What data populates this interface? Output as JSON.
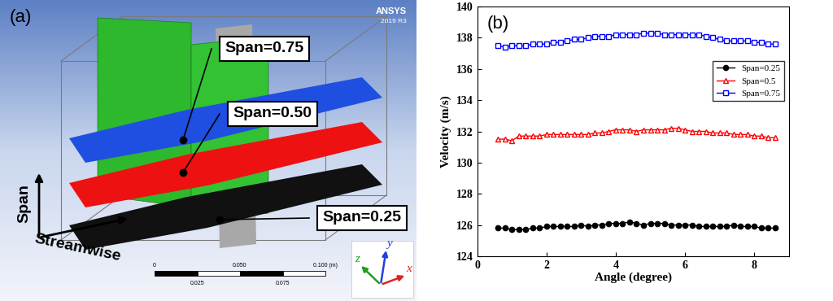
{
  "diagram": {
    "panel_label": "(a)",
    "logo": {
      "title": "ANSYS",
      "version": "2019 R3"
    },
    "surface_labels": [
      "Span=0.75",
      "Span=0.50",
      "Span=0.25"
    ],
    "axes_arrows": {
      "vertical": "Span",
      "horizontal": "Streamwise"
    },
    "scale_bar": {
      "labels_top": [
        "0",
        "0.050",
        "0.100 (m)"
      ],
      "labels_bottom": [
        "0.025",
        "0.075"
      ]
    },
    "triad": [
      "z",
      "y",
      "x"
    ]
  },
  "chart_data": {
    "type": "line",
    "annotations": [
      "(b)"
    ],
    "x_label": "Angle (degree)",
    "y_label": "Velocity (m/s)",
    "x": [
      0.6,
      0.8,
      1.0,
      1.2,
      1.4,
      1.6,
      1.8,
      2.0,
      2.2,
      2.4,
      2.6,
      2.8,
      3.0,
      3.2,
      3.4,
      3.6,
      3.8,
      4.0,
      4.2,
      4.4,
      4.6,
      4.8,
      5.0,
      5.2,
      5.4,
      5.6,
      5.8,
      6.0,
      6.2,
      6.4,
      6.6,
      6.8,
      7.0,
      7.2,
      7.4,
      7.6,
      7.8,
      8.0,
      8.2,
      8.4,
      8.6
    ],
    "series": [
      {
        "name": "Span=0.25",
        "color": "#000000",
        "marker": "circle",
        "values": [
          125.8,
          125.8,
          125.7,
          125.7,
          125.7,
          125.8,
          125.8,
          125.9,
          125.9,
          125.9,
          125.9,
          125.9,
          126.0,
          125.9,
          126.0,
          126.0,
          126.1,
          126.1,
          126.1,
          126.2,
          126.1,
          126.0,
          126.1,
          126.1,
          126.1,
          126.0,
          126.0,
          126.0,
          126.0,
          125.9,
          125.9,
          125.9,
          125.9,
          125.9,
          126.0,
          125.9,
          125.9,
          125.9,
          125.8,
          125.8,
          125.8
        ]
      },
      {
        "name": "Span=0.5",
        "color": "#ff0000",
        "marker": "triangle",
        "values": [
          131.5,
          131.5,
          131.4,
          131.7,
          131.7,
          131.7,
          131.7,
          131.8,
          131.8,
          131.8,
          131.8,
          131.8,
          131.8,
          131.8,
          131.9,
          131.9,
          132.0,
          132.1,
          132.1,
          132.1,
          132.0,
          132.1,
          132.1,
          132.1,
          132.1,
          132.2,
          132.2,
          132.1,
          132.0,
          132.0,
          132.0,
          131.9,
          131.9,
          131.9,
          131.8,
          131.8,
          131.8,
          131.7,
          131.7,
          131.6,
          131.6
        ]
      },
      {
        "name": "Span=0.75",
        "color": "#0000ff",
        "marker": "square",
        "values": [
          137.5,
          137.4,
          137.5,
          137.5,
          137.5,
          137.6,
          137.6,
          137.6,
          137.7,
          137.7,
          137.8,
          137.9,
          137.9,
          138.0,
          138.1,
          138.1,
          138.1,
          138.2,
          138.2,
          138.2,
          138.2,
          138.3,
          138.3,
          138.3,
          138.2,
          138.2,
          138.2,
          138.2,
          138.2,
          138.2,
          138.1,
          138.0,
          137.9,
          137.8,
          137.8,
          137.8,
          137.8,
          137.7,
          137.7,
          137.6,
          137.6
        ]
      }
    ],
    "xlim": [
      0,
      9
    ],
    "xticks": [
      0,
      2,
      4,
      6,
      8
    ],
    "ylim": [
      124,
      140
    ],
    "yticks": [
      124,
      126,
      128,
      130,
      132,
      134,
      136,
      138,
      140
    ],
    "legend": "upper right"
  }
}
